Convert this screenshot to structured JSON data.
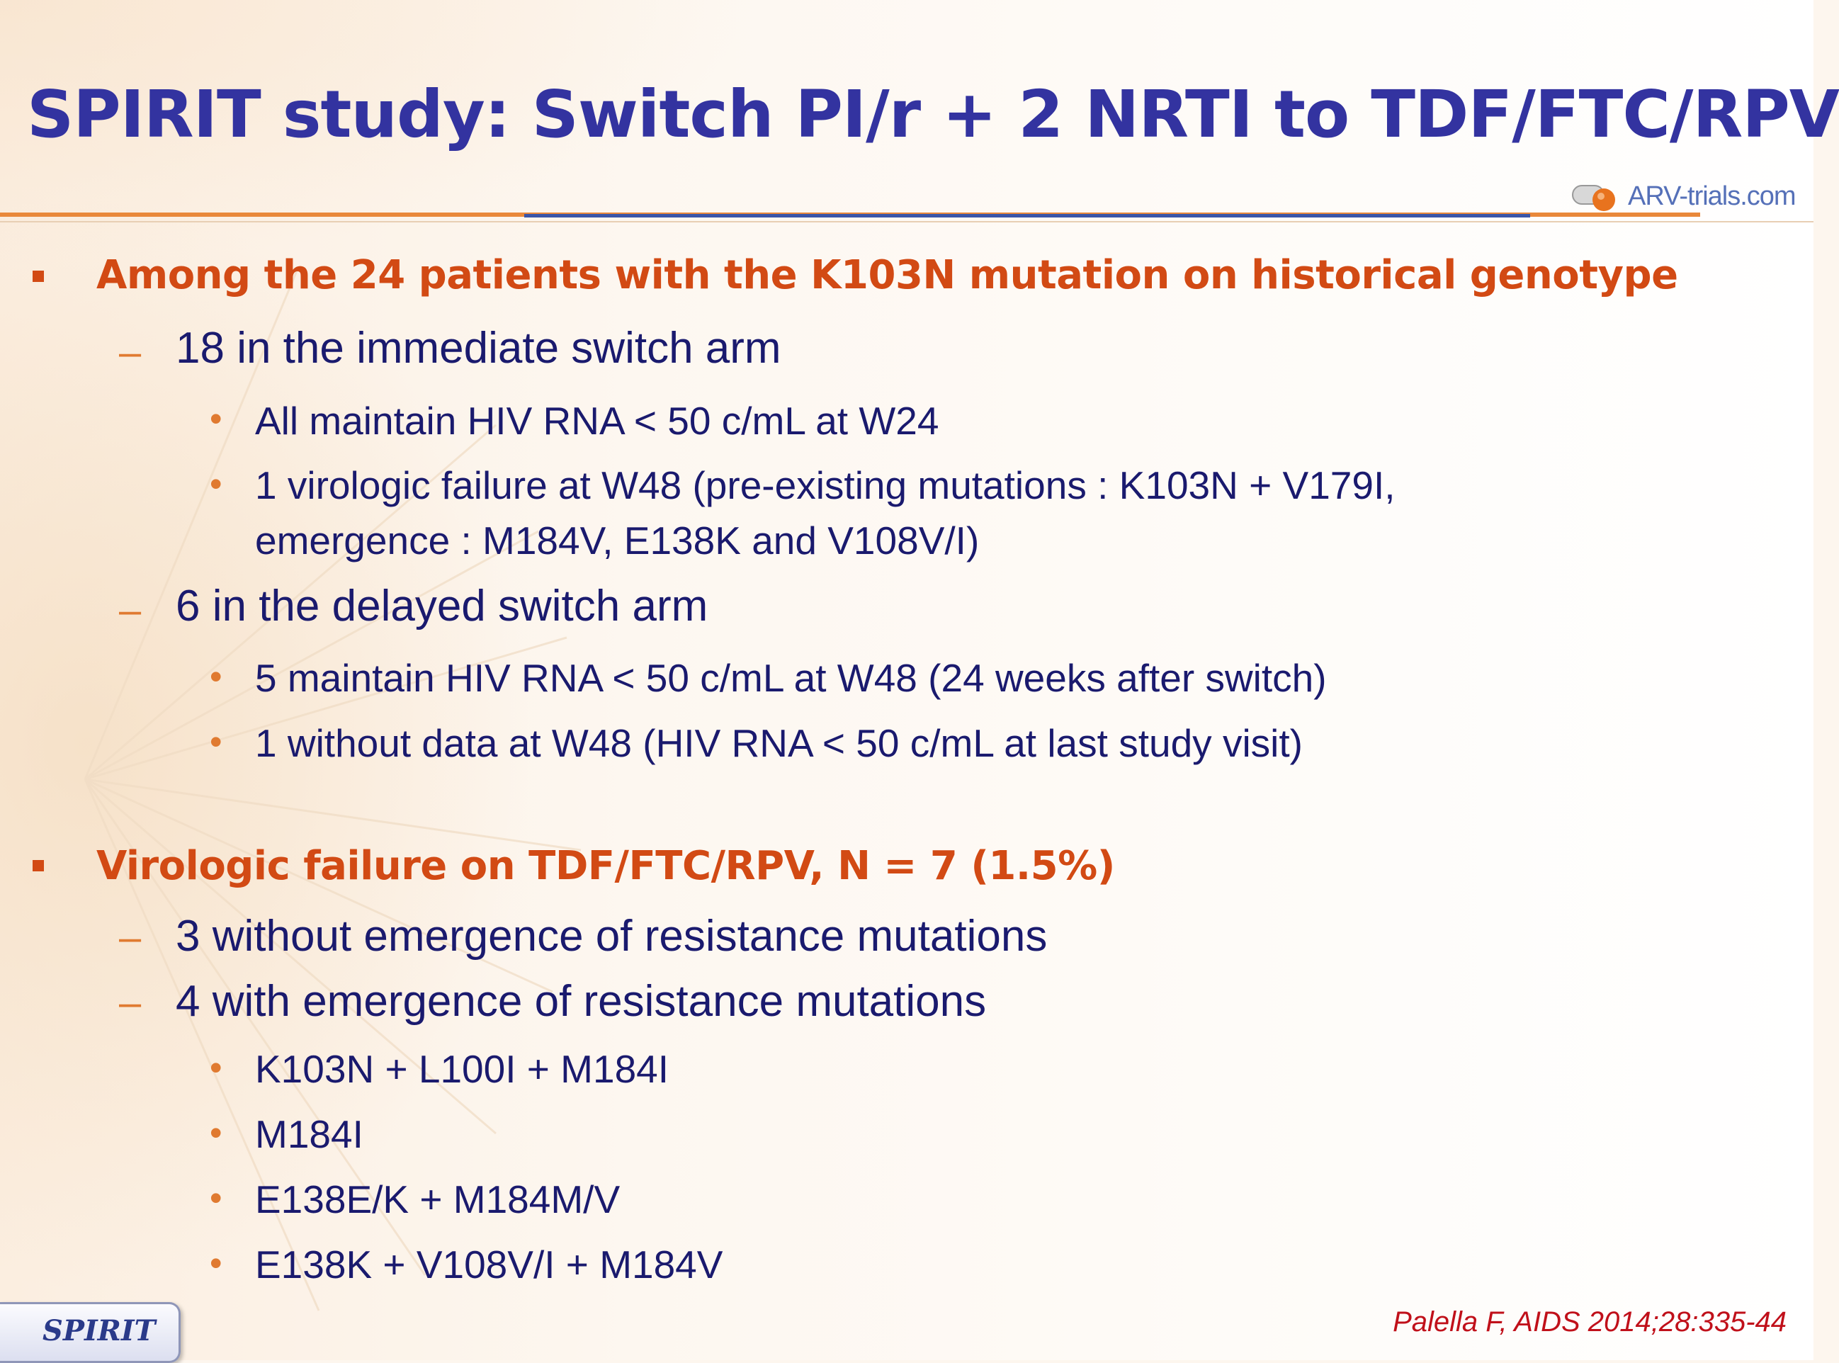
{
  "slide": {
    "title": "SPIRIT study: Switch PI/r + 2 NRTI to TDF/FTC/RPV",
    "logo_text": "ARV-trials.com",
    "sections": [
      {
        "heading": "Among the 24 patients with the K103N mutation on historical genotype",
        "items": [
          {
            "text": "18 in the immediate switch arm",
            "subitems": [
              "All maintain HIV RNA < 50 c/mL at W24",
              "1 virologic failure at W48 (pre-existing mutations : K103N + V179I,",
              "emergence : M184V, E138K and V108V/I)"
            ]
          },
          {
            "text": "6 in the delayed switch arm",
            "subitems": [
              "5 maintain HIV RNA < 50 c/mL at W48 (24 weeks after switch)",
              " 1 without data at W48 (HIV RNA < 50 c/mL at last study visit)"
            ]
          }
        ]
      },
      {
        "heading": "Virologic failure on TDF/FTC/RPV, N = 7 (1.5%)",
        "items": [
          {
            "text": "3 without emergence of resistance mutations",
            "subitems": []
          },
          {
            "text": "4 with emergence of resistance mutations",
            "subitems": [
              "K103N + L100I + M184I",
              "M184I",
              "E138E/K + M184M/V",
              "E138K + V108V/I + M184V"
            ]
          }
        ]
      }
    ],
    "study_tag": "SPIRIT",
    "citation": "Palella F, AIDS 2014;28:335-44",
    "colors": {
      "title": "#3333a0",
      "heading": "#d24a14",
      "body": "#1a1a6e",
      "bullet": "#e07a30",
      "citation": "#c0101a"
    }
  }
}
